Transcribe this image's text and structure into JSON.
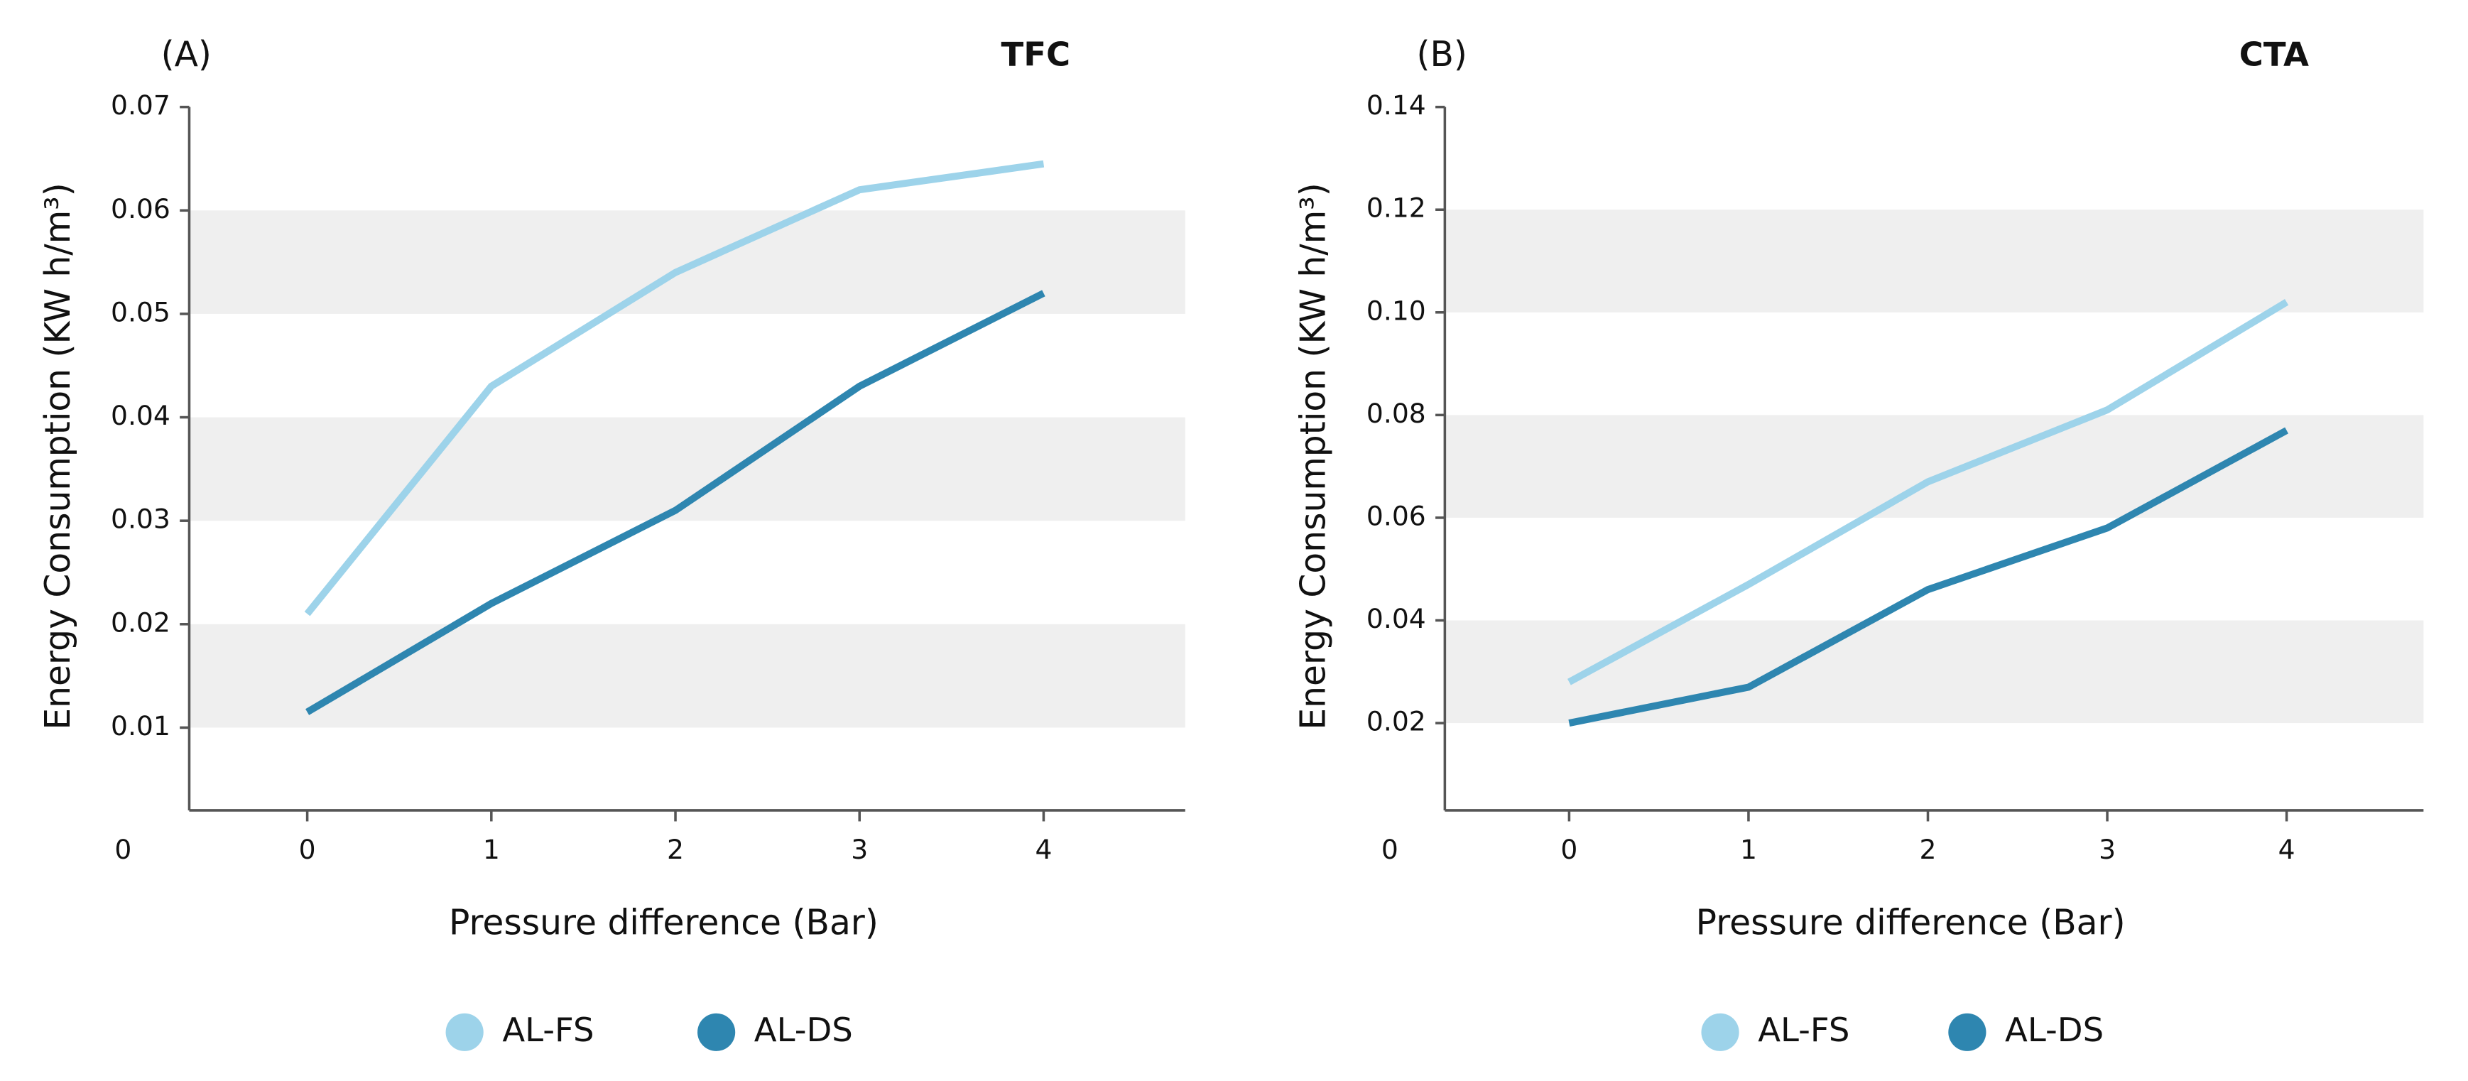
{
  "chart_data": [
    {
      "type": "line",
      "panel_label": "(A)",
      "title": "TFC",
      "y_label": "Energy Consumption (KW h/m³)",
      "x_label": "Pressure difference (Bar)",
      "categories": [
        "0",
        "0",
        "1",
        "2",
        "3",
        "4"
      ],
      "series": [
        {
          "name": "AL-FS",
          "color": "#9dd3ea",
          "values": [
            null,
            0.021,
            0.043,
            0.054,
            0.062,
            0.0645
          ]
        },
        {
          "name": "AL-DS",
          "color": "#2e86b0",
          "values": [
            null,
            0.0115,
            0.022,
            0.031,
            0.043,
            0.052
          ]
        }
      ],
      "ylim": [
        0.002,
        0.07
      ],
      "yticks": [
        0.01,
        0.02,
        0.03,
        0.04,
        0.05,
        0.06,
        0.07
      ]
    },
    {
      "type": "line",
      "panel_label": "(B)",
      "title": "CTA",
      "y_label": "Energy Consumption (KW h/m³)",
      "x_label": "Pressure difference (Bar)",
      "categories": [
        "0",
        "0",
        "1",
        "2",
        "3",
        "4"
      ],
      "series": [
        {
          "name": "AL-FS",
          "color": "#9dd3ea",
          "values": [
            null,
            0.028,
            0.047,
            0.067,
            0.081,
            0.102
          ]
        },
        {
          "name": "AL-DS",
          "color": "#2e86b0",
          "values": [
            null,
            0.02,
            0.027,
            0.046,
            0.058,
            0.077
          ]
        }
      ],
      "ylim": [
        0.003,
        0.14
      ],
      "yticks": [
        0.02,
        0.04,
        0.06,
        0.08,
        {
          "value": 0.1,
          "label": "0.10"
        },
        0.12,
        0.14
      ]
    }
  ]
}
